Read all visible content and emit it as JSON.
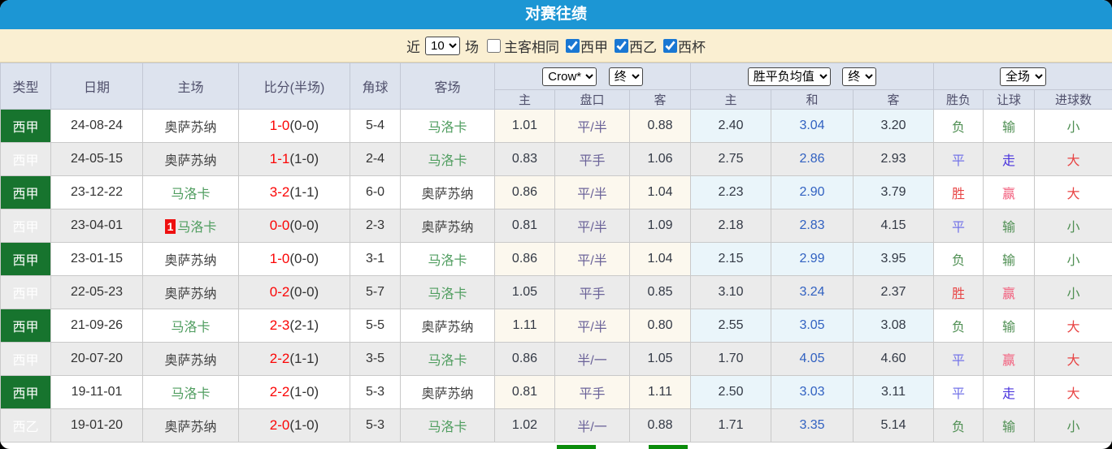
{
  "title": "对赛往绩",
  "filter": {
    "recent_label": "近",
    "recent_value": "10",
    "matches_label": "场",
    "same_venue_label": "主客相同",
    "same_venue_checked": false,
    "leagues": [
      {
        "label": "西甲",
        "checked": true
      },
      {
        "label": "西乙",
        "checked": true
      },
      {
        "label": "西杯",
        "checked": true
      }
    ]
  },
  "table": {
    "static_headers": [
      "类型",
      "日期",
      "主场",
      "比分(半场)",
      "角球",
      "客场"
    ],
    "selects": {
      "odds_source": "Crow*",
      "odds_time": "终",
      "avg_source": "胜平负均值",
      "avg_time": "终",
      "scope": "全场"
    },
    "sub_headers": [
      "主",
      "盘口",
      "客",
      "主",
      "和",
      "客",
      "胜负",
      "让球",
      "进球数"
    ],
    "rows": [
      {
        "league": {
          "text": "西甲",
          "cls": "liga"
        },
        "date": "24-08-24",
        "home": {
          "name": "奥萨苏纳",
          "target": false,
          "badge": ""
        },
        "score": {
          "main": "1-0",
          "half": "(0-0)"
        },
        "corners": "5-4",
        "away": {
          "name": "马洛卡",
          "target": true
        },
        "odds": [
          "1.01",
          "平/半",
          "0.88"
        ],
        "avg": [
          "2.40",
          "3.04",
          "3.20"
        ],
        "results": [
          {
            "text": "负",
            "tone": "green"
          },
          {
            "text": "输",
            "tone": "green"
          },
          {
            "text": "小",
            "tone": "green"
          }
        ]
      },
      {
        "league": {
          "text": "西甲",
          "cls": "liga"
        },
        "date": "24-05-15",
        "home": {
          "name": "奥萨苏纳",
          "target": false,
          "badge": ""
        },
        "score": {
          "main": "1-1",
          "half": "(1-0)"
        },
        "corners": "2-4",
        "away": {
          "name": "马洛卡",
          "target": true
        },
        "odds": [
          "0.83",
          "平手",
          "1.06"
        ],
        "avg": [
          "2.75",
          "2.86",
          "2.93"
        ],
        "results": [
          {
            "text": "平",
            "tone": "blue"
          },
          {
            "text": "走",
            "tone": "walk"
          },
          {
            "text": "大",
            "tone": "red"
          }
        ]
      },
      {
        "league": {
          "text": "西甲",
          "cls": "liga"
        },
        "date": "23-12-22",
        "home": {
          "name": "马洛卡",
          "target": true,
          "badge": ""
        },
        "score": {
          "main": "3-2",
          "half": "(1-1)"
        },
        "corners": "6-0",
        "away": {
          "name": "奥萨苏纳",
          "target": false
        },
        "odds": [
          "0.86",
          "平/半",
          "1.04"
        ],
        "avg": [
          "2.23",
          "2.90",
          "3.79"
        ],
        "results": [
          {
            "text": "胜",
            "tone": "red"
          },
          {
            "text": "赢",
            "tone": "pink"
          },
          {
            "text": "大",
            "tone": "red"
          }
        ]
      },
      {
        "league": {
          "text": "西甲",
          "cls": "liga"
        },
        "date": "23-04-01",
        "home": {
          "name": "马洛卡",
          "target": true,
          "badge": "1"
        },
        "score": {
          "main": "0-0",
          "half": "(0-0)"
        },
        "corners": "2-3",
        "away": {
          "name": "奥萨苏纳",
          "target": false
        },
        "odds": [
          "0.81",
          "平/半",
          "1.09"
        ],
        "avg": [
          "2.18",
          "2.83",
          "4.15"
        ],
        "results": [
          {
            "text": "平",
            "tone": "blue"
          },
          {
            "text": "输",
            "tone": "green"
          },
          {
            "text": "小",
            "tone": "green"
          }
        ]
      },
      {
        "league": {
          "text": "西甲",
          "cls": "liga"
        },
        "date": "23-01-15",
        "home": {
          "name": "奥萨苏纳",
          "target": false,
          "badge": ""
        },
        "score": {
          "main": "1-0",
          "half": "(0-0)"
        },
        "corners": "3-1",
        "away": {
          "name": "马洛卡",
          "target": true
        },
        "odds": [
          "0.86",
          "平/半",
          "1.04"
        ],
        "avg": [
          "2.15",
          "2.99",
          "3.95"
        ],
        "results": [
          {
            "text": "负",
            "tone": "green"
          },
          {
            "text": "输",
            "tone": "green"
          },
          {
            "text": "小",
            "tone": "green"
          }
        ]
      },
      {
        "league": {
          "text": "西甲",
          "cls": "liga"
        },
        "date": "22-05-23",
        "home": {
          "name": "奥萨苏纳",
          "target": false,
          "badge": ""
        },
        "score": {
          "main": "0-2",
          "half": "(0-0)"
        },
        "corners": "5-7",
        "away": {
          "name": "马洛卡",
          "target": true
        },
        "odds": [
          "1.05",
          "平手",
          "0.85"
        ],
        "avg": [
          "3.10",
          "3.24",
          "2.37"
        ],
        "results": [
          {
            "text": "胜",
            "tone": "red"
          },
          {
            "text": "赢",
            "tone": "pink"
          },
          {
            "text": "小",
            "tone": "green"
          }
        ]
      },
      {
        "league": {
          "text": "西甲",
          "cls": "liga"
        },
        "date": "21-09-26",
        "home": {
          "name": "马洛卡",
          "target": true,
          "badge": ""
        },
        "score": {
          "main": "2-3",
          "half": "(2-1)"
        },
        "corners": "5-5",
        "away": {
          "name": "奥萨苏纳",
          "target": false
        },
        "odds": [
          "1.11",
          "平/半",
          "0.80"
        ],
        "avg": [
          "2.55",
          "3.05",
          "3.08"
        ],
        "results": [
          {
            "text": "负",
            "tone": "green"
          },
          {
            "text": "输",
            "tone": "green"
          },
          {
            "text": "大",
            "tone": "red"
          }
        ]
      },
      {
        "league": {
          "text": "西甲",
          "cls": "liga"
        },
        "date": "20-07-20",
        "home": {
          "name": "奥萨苏纳",
          "target": false,
          "badge": ""
        },
        "score": {
          "main": "2-2",
          "half": "(1-1)"
        },
        "corners": "3-5",
        "away": {
          "name": "马洛卡",
          "target": true
        },
        "odds": [
          "0.86",
          "半/一",
          "1.05"
        ],
        "avg": [
          "1.70",
          "4.05",
          "4.60"
        ],
        "results": [
          {
            "text": "平",
            "tone": "blue"
          },
          {
            "text": "赢",
            "tone": "pink"
          },
          {
            "text": "大",
            "tone": "red"
          }
        ]
      },
      {
        "league": {
          "text": "西甲",
          "cls": "liga"
        },
        "date": "19-11-01",
        "home": {
          "name": "马洛卡",
          "target": true,
          "badge": ""
        },
        "score": {
          "main": "2-2",
          "half": "(1-0)"
        },
        "corners": "5-3",
        "away": {
          "name": "奥萨苏纳",
          "target": false
        },
        "odds": [
          "0.81",
          "平手",
          "1.11"
        ],
        "avg": [
          "2.50",
          "3.03",
          "3.11"
        ],
        "results": [
          {
            "text": "平",
            "tone": "blue"
          },
          {
            "text": "走",
            "tone": "walk"
          },
          {
            "text": "大",
            "tone": "red"
          }
        ]
      },
      {
        "league": {
          "text": "西乙",
          "cls": "liga2"
        },
        "date": "19-01-20",
        "home": {
          "name": "奥萨苏纳",
          "target": false,
          "badge": ""
        },
        "score": {
          "main": "2-0",
          "half": "(1-0)"
        },
        "corners": "5-3",
        "away": {
          "name": "马洛卡",
          "target": true
        },
        "odds": [
          "1.02",
          "半/一",
          "0.88"
        ],
        "avg": [
          "1.71",
          "3.35",
          "5.14"
        ],
        "results": [
          {
            "text": "负",
            "tone": "green"
          },
          {
            "text": "输",
            "tone": "green"
          },
          {
            "text": "小",
            "tone": "green"
          }
        ]
      }
    ]
  },
  "colors": {
    "title_bar": "#1c96d4",
    "filter_bar": "#faefd2",
    "header_bg": "#dde3ee",
    "liga_green": "#17742e",
    "liga2_green": "#54a00c",
    "target_team_green": "#4f9d5f",
    "score_red": "#fb0505",
    "handicap_purple": "#6b6399",
    "avg_blue": "#3161c1",
    "result_green": "#4f8f53",
    "result_blue": "#7373e8",
    "result_red": "#e84444",
    "bottom_bar_green": "#0a8c0a"
  }
}
